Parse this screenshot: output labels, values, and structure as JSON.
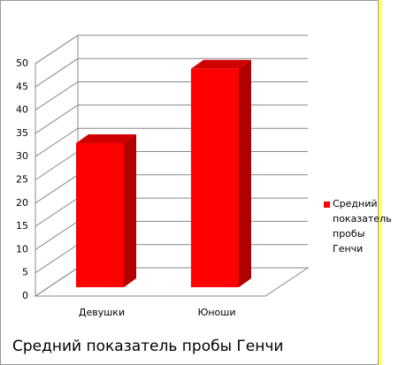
{
  "chart_data": {
    "type": "bar3d",
    "title": "Средний показатель пробы Генчи",
    "categories": [
      "Девушки",
      "Юноши"
    ],
    "series": [
      {
        "name": "Средний показатель пробы Генчи",
        "color": "#ff0000",
        "values": [
          31,
          47
        ]
      }
    ],
    "ylim": [
      0,
      50
    ],
    "yticks": [
      0,
      5,
      10,
      15,
      20,
      25,
      30,
      35,
      40,
      45,
      50
    ],
    "grid": true,
    "legend": "right"
  }
}
